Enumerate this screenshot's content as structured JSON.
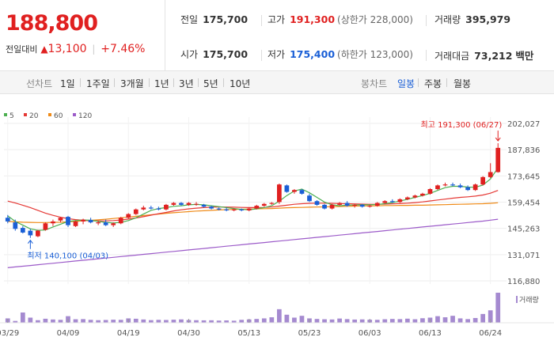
{
  "price": {
    "current": "188,800",
    "change_label": "전일대비",
    "change_arrow": "▲",
    "change_value": "13,100",
    "change_percent": "+7.46%"
  },
  "stats": {
    "prev_close_label": "전일",
    "prev_close": "175,700",
    "high_label": "고가",
    "high": "191,300",
    "upper_limit": "(상한가 228,000)",
    "volume_label": "거래량",
    "volume": "395,979",
    "open_label": "시가",
    "open": "175,700",
    "low_label": "저가",
    "low": "175,400",
    "lower_limit": "(하한가 123,000)",
    "amount_label": "거래대금",
    "amount": "73,212",
    "amount_unit": "백만"
  },
  "periods": {
    "line_label": "선차트",
    "line_items": [
      "1일",
      "1주일",
      "3개월",
      "1년",
      "3년",
      "5년",
      "10년"
    ],
    "candle_label": "봉차트",
    "candle_items": [
      "일봉",
      "주봉",
      "월봉"
    ],
    "active_candle": "일봉"
  },
  "colors": {
    "up": "#e02020",
    "down": "#1a5fd6",
    "ma5": "#4caf50",
    "ma20": "#e53935",
    "ma60": "#ef8a17",
    "ma120": "#9c5bc9",
    "volume": "#a58ad0"
  },
  "chart_data": {
    "type": "candlestick",
    "legend": [
      {
        "name": "5",
        "color": "#4caf50"
      },
      {
        "name": "20",
        "color": "#e53935"
      },
      {
        "name": "60",
        "color": "#ef8a17"
      },
      {
        "name": "120",
        "color": "#9c5bc9"
      }
    ],
    "y_ticks": [
      "202,027",
      "187,836",
      "173,645",
      "159,454",
      "145,263",
      "131,071",
      "116,880"
    ],
    "y_tick_values": [
      202027,
      187836,
      173645,
      159454,
      145263,
      131071,
      116880
    ],
    "x_labels": [
      "03/29",
      "04/09",
      "04/19",
      "04/30",
      "05/13",
      "05/23",
      "06/03",
      "06/13",
      "06/24"
    ],
    "x_label_index": [
      0,
      8,
      16,
      24,
      32,
      40,
      48,
      56,
      64
    ],
    "annotations": {
      "high": "최고 191,300 (06/27)",
      "low": "최저 140,100 (04/03)"
    },
    "volume_label": "거래량",
    "ohlc": [
      [
        151000,
        152500,
        148000,
        149000
      ],
      [
        148500,
        150000,
        144000,
        145000
      ],
      [
        145500,
        146500,
        142500,
        143000
      ],
      [
        144000,
        145000,
        140100,
        141500
      ],
      [
        141000,
        144500,
        140500,
        144000
      ],
      [
        144500,
        148500,
        144000,
        148000
      ],
      [
        148000,
        150000,
        146500,
        149000
      ],
      [
        149500,
        151500,
        148500,
        151000
      ],
      [
        151500,
        152000,
        146000,
        147000
      ],
      [
        146500,
        149500,
        146000,
        149000
      ],
      [
        149000,
        150500,
        147500,
        150000
      ],
      [
        149800,
        151000,
        148000,
        148500
      ],
      [
        148000,
        149500,
        147000,
        148500
      ],
      [
        148500,
        150000,
        146500,
        147000
      ],
      [
        147000,
        148500,
        146000,
        148000
      ],
      [
        148000,
        151500,
        147500,
        151000
      ],
      [
        151000,
        153500,
        150500,
        153000
      ],
      [
        153000,
        156000,
        152500,
        155500
      ],
      [
        155500,
        157500,
        155000,
        156500
      ],
      [
        156500,
        157500,
        155500,
        156000
      ],
      [
        156000,
        157000,
        155000,
        155500
      ],
      [
        155500,
        158500,
        155000,
        158000
      ],
      [
        158000,
        159500,
        157500,
        159000
      ],
      [
        159000,
        159500,
        157500,
        158000
      ],
      [
        158000,
        159500,
        157500,
        159000
      ],
      [
        158500,
        159500,
        157500,
        158500
      ],
      [
        158000,
        158500,
        156500,
        157000
      ],
      [
        157000,
        157500,
        155500,
        156000
      ],
      [
        156000,
        156500,
        155000,
        155500
      ],
      [
        155500,
        156500,
        154500,
        155000
      ],
      [
        155000,
        156000,
        154500,
        155500
      ],
      [
        155500,
        156000,
        154500,
        155000
      ],
      [
        155000,
        156500,
        154500,
        156000
      ],
      [
        156000,
        158000,
        155500,
        157500
      ],
      [
        157500,
        159000,
        157000,
        158500
      ],
      [
        158500,
        159500,
        158000,
        159000
      ],
      [
        159500,
        169500,
        158500,
        169000
      ],
      [
        168500,
        169000,
        164500,
        165000
      ],
      [
        165000,
        166500,
        164000,
        166000
      ],
      [
        166000,
        166500,
        163500,
        164000
      ],
      [
        163000,
        164000,
        159500,
        160000
      ],
      [
        160000,
        160500,
        157500,
        158000
      ],
      [
        158000,
        158500,
        155500,
        156000
      ],
      [
        156000,
        158500,
        155500,
        158000
      ],
      [
        158000,
        159500,
        157500,
        159000
      ],
      [
        159000,
        160000,
        157000,
        157500
      ],
      [
        157500,
        158500,
        156500,
        158000
      ],
      [
        158000,
        158500,
        156500,
        157000
      ],
      [
        157000,
        158000,
        156500,
        157500
      ],
      [
        157500,
        159500,
        157000,
        159000
      ],
      [
        159000,
        160500,
        158500,
        160000
      ],
      [
        160000,
        161000,
        159000,
        159500
      ],
      [
        159500,
        161500,
        159000,
        161000
      ],
      [
        161000,
        162500,
        160500,
        162000
      ],
      [
        162000,
        163500,
        161500,
        163000
      ],
      [
        163000,
        164500,
        162500,
        164000
      ],
      [
        164000,
        167000,
        163500,
        166500
      ],
      [
        166500,
        169000,
        166000,
        168500
      ],
      [
        168500,
        170000,
        168000,
        169000
      ],
      [
        169000,
        170000,
        168000,
        168500
      ],
      [
        168500,
        169500,
        167000,
        167500
      ],
      [
        167500,
        168500,
        165500,
        166000
      ],
      [
        166000,
        169500,
        165500,
        169000
      ],
      [
        169000,
        173500,
        168500,
        173000
      ],
      [
        173000,
        180500,
        172500,
        175700
      ],
      [
        175700,
        191300,
        175400,
        188800
      ]
    ],
    "volume": [
      60,
      25,
      140,
      70,
      35,
      55,
      45,
      40,
      90,
      48,
      50,
      40,
      35,
      38,
      42,
      40,
      60,
      55,
      45,
      36,
      40,
      38,
      42,
      46,
      38,
      35,
      33,
      34,
      30,
      32,
      28,
      40,
      46,
      52,
      60,
      75,
      185,
      110,
      70,
      95,
      60,
      52,
      48,
      45,
      58,
      50,
      44,
      46,
      42,
      40,
      48,
      52,
      50,
      56,
      48,
      62,
      70,
      90,
      75,
      95,
      60,
      50,
      65,
      120,
      170,
      410
    ],
    "ma5": [
      152000,
      149000,
      147000,
      145000,
      144200,
      144400,
      146000,
      147500,
      149000,
      149500,
      149800,
      149700,
      149000,
      148500,
      148200,
      148500,
      149500,
      151000,
      153000,
      155000,
      156000,
      156500,
      157200,
      157500,
      158000,
      158200,
      158000,
      157500,
      157000,
      156500,
      156000,
      155500,
      155300,
      155800,
      156500,
      157500,
      160000,
      163000,
      165500,
      166500,
      164500,
      162000,
      159500,
      158000,
      157500,
      157800,
      157900,
      158000,
      158000,
      158200,
      158600,
      159200,
      160000,
      161000,
      162000,
      163000,
      164200,
      165800,
      167300,
      168000,
      168000,
      167600,
      167500,
      168700,
      172000,
      178000
    ],
    "ma20": [
      160000,
      159000,
      157800,
      156500,
      155000,
      153500,
      152300,
      151300,
      150500,
      150000,
      149600,
      149400,
      149300,
      149300,
      149500,
      149800,
      150300,
      150900,
      151600,
      152400,
      153200,
      153900,
      154700,
      155300,
      155800,
      156200,
      156500,
      156700,
      156800,
      156800,
      156700,
      156600,
      156500,
      156500,
      156600,
      156800,
      157300,
      157800,
      158300,
      158600,
      158800,
      158900,
      158900,
      158800,
      158700,
      158600,
      158500,
      158400,
      158300,
      158300,
      158400,
      158500,
      158700,
      158900,
      159200,
      159600,
      160100,
      160600,
      161100,
      161600,
      162000,
      162300,
      162700,
      163300,
      164300,
      165800
    ],
    "ma60": [
      149000,
      148800,
      148600,
      148500,
      148400,
      148400,
      148500,
      148600,
      148800,
      149000,
      149300,
      149600,
      149900,
      150200,
      150600,
      151000,
      151400,
      151800,
      152200,
      152600,
      153000,
      153400,
      153700,
      154000,
      154300,
      154600,
      154800,
      155000,
      155200,
      155400,
      155500,
      155600,
      155700,
      155800,
      155900,
      156000,
      156200,
      156400,
      156500,
      156600,
      156700,
      156800,
      156900,
      157000,
      157100,
      157200,
      157300,
      157400,
      157400,
      157500,
      157600,
      157600,
      157700,
      157700,
      157800,
      157800,
      157900,
      158000,
      158100,
      158200,
      158300,
      158400,
      158500,
      158600,
      158800,
      159100
    ],
    "ma120": [
      124000,
      124400,
      124800,
      125200,
      125600,
      126000,
      126400,
      126800,
      127200,
      127600,
      128000,
      128400,
      128800,
      129200,
      129600,
      130000,
      130400,
      130800,
      131200,
      131600,
      132000,
      132400,
      132800,
      133200,
      133600,
      134000,
      134400,
      134800,
      135200,
      135600,
      136000,
      136400,
      136800,
      137200,
      137600,
      138000,
      138400,
      138800,
      139200,
      139600,
      140000,
      140400,
      140800,
      141200,
      141600,
      142000,
      142400,
      142800,
      143200,
      143600,
      144000,
      144400,
      144800,
      145200,
      145600,
      146000,
      146400,
      146800,
      147200,
      147600,
      148000,
      148400,
      148800,
      149200,
      149700,
      150200
    ]
  }
}
